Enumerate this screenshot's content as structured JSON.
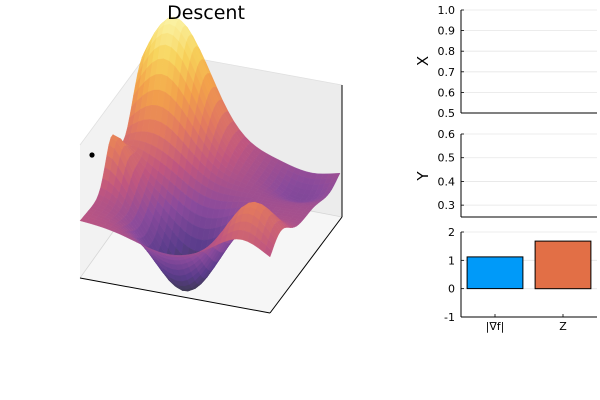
{
  "chart_data": [
    {
      "type": "surface",
      "title": "Descent",
      "colormap": [
        "#3a3a4a",
        "#5b3c8c",
        "#8a4a9c",
        "#c0567f",
        "#e37a5e",
        "#f3a24a",
        "#f7d35a",
        "#fbf3a6"
      ],
      "point": {
        "color": "#000000"
      }
    },
    {
      "type": "line",
      "ylabel": "X",
      "ylim": [
        0.5,
        1.0
      ],
      "yticks": [
        0.5,
        0.6,
        0.7,
        0.8,
        0.9,
        1.0
      ],
      "yticklabels": [
        "0.5",
        "0.6",
        "0.7",
        "0.8",
        "0.9",
        "1.0"
      ],
      "grid": true,
      "series": []
    },
    {
      "type": "line",
      "ylabel": "Y",
      "ylim": [
        0.25,
        0.6
      ],
      "yticks": [
        0.3,
        0.4,
        0.5,
        0.6
      ],
      "yticklabels": [
        "0.3",
        "0.4",
        "0.5",
        "0.6"
      ],
      "grid": true,
      "series": []
    },
    {
      "type": "bar",
      "categories": [
        "|∇f|",
        "Z"
      ],
      "values": [
        1.12,
        1.68
      ],
      "colors": [
        "#009af9",
        "#e26f46"
      ],
      "ylim": [
        -1,
        2
      ],
      "yticks": [
        -1,
        0,
        1,
        2
      ],
      "yticklabels": [
        "-1",
        "0",
        "1",
        "2"
      ],
      "grid": true
    }
  ]
}
